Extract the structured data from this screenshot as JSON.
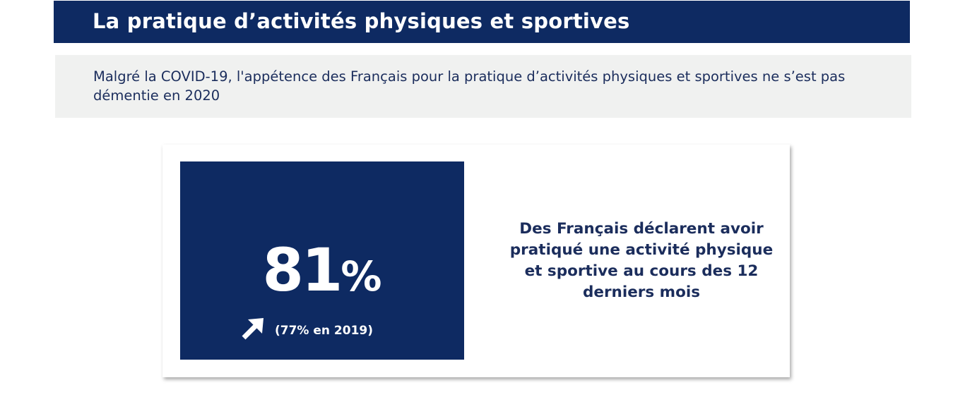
{
  "header": {
    "title": "La pratique d’activités physiques et sportives"
  },
  "intro": {
    "text": "Malgré la COVID-19, l'appétence des Français pour la pratique d’activités physiques et sportives ne s’est pas démentie en 2020"
  },
  "stat": {
    "number": "81",
    "unit": "%",
    "trend_icon": "arrow-up-right-icon",
    "comparison": "(77% en 2019)",
    "description": "Des Français déclarent avoir pratiqué une activité physique et sportive au cours des 12 derniers mois"
  },
  "colors": {
    "navy": "#0e2a62",
    "text_navy": "#1b2d5c",
    "panel_gray": "#f0f1f0"
  }
}
